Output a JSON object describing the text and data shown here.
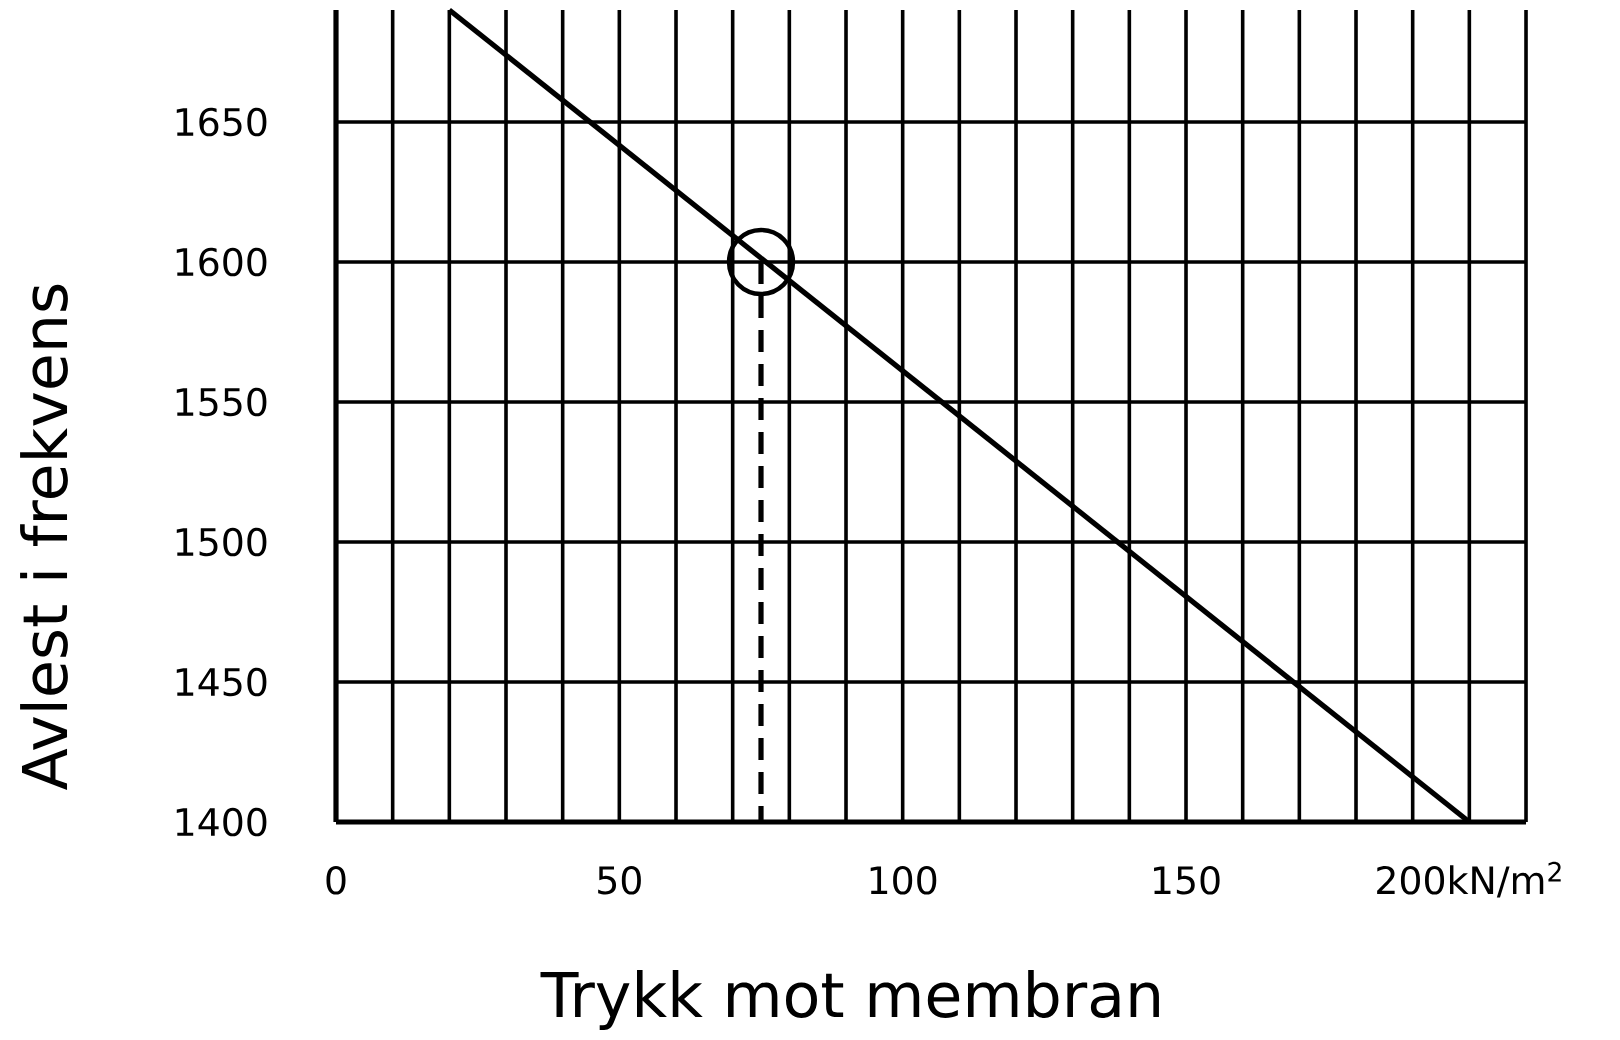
{
  "chart_data": {
    "type": "line",
    "xlabel": "Trykk mot membran",
    "ylabel": "Avlest i frekvens",
    "xlim": [
      0,
      210
    ],
    "ylim": [
      1400,
      1690
    ],
    "xticks": [
      0,
      {
        "value": 10,
        "label": null
      },
      {
        "value": 20,
        "label": null
      },
      {
        "value": 30,
        "label": null
      },
      {
        "value": 40,
        "label": null
      },
      50,
      {
        "value": 60,
        "label": null
      },
      {
        "value": 70,
        "label": null
      },
      {
        "value": 80,
        "label": null
      },
      {
        "value": 90,
        "label": null
      },
      100,
      {
        "value": 110,
        "label": null
      },
      {
        "value": 120,
        "label": null
      },
      {
        "value": 130,
        "label": null
      },
      {
        "value": 140,
        "label": null
      },
      150,
      {
        "value": 160,
        "label": null
      },
      {
        "value": 170,
        "label": null
      },
      {
        "value": 180,
        "label": null
      },
      {
        "value": 190,
        "label": null
      },
      {
        "value": 200,
        "label": "200kN/m$^{2}$"
      },
      {
        "value": 210,
        "label": null
      }
    ],
    "yticks": [
      1400,
      1450,
      1500,
      1550,
      1600,
      1650
    ],
    "grid": true,
    "series": [
      {
        "color": "#000000",
        "x": [
          20,
          200
        ],
        "values": [
          1690,
          1400
        ],
        "line_style": "solid"
      },
      {
        "color": "#000000",
        "x": [
          75,
          75
        ],
        "values": [
          1600,
          1400
        ],
        "line_style": "dashed"
      },
      {
        "type": "scatter",
        "color": "#000000",
        "x": [
          75
        ],
        "values": [
          1600
        ],
        "marker": "circle"
      }
    ]
  }
}
